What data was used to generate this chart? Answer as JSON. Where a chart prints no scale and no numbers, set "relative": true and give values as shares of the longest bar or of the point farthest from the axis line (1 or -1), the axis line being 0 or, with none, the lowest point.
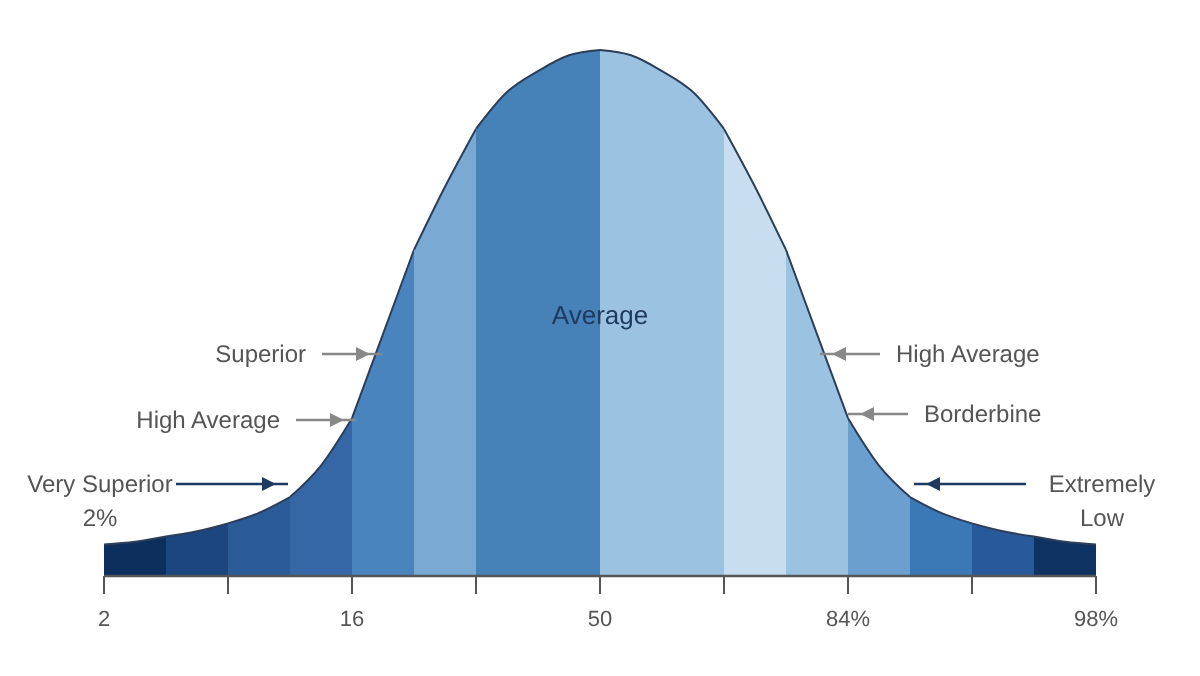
{
  "chart_data": {
    "type": "area",
    "relative": true,
    "categories": [
      "2",
      null,
      null,
      null,
      null,
      null,
      null,
      null,
      "16",
      null,
      null,
      null,
      null,
      null,
      null,
      null,
      "50",
      null,
      null,
      null,
      null,
      null,
      null,
      null,
      "84%",
      null,
      null,
      null,
      null,
      null,
      null,
      null,
      "98%"
    ],
    "series": [
      {
        "color": "#0d2f5e",
        "values": [
          0.06,
          0.065,
          0.075,
          null,
          null,
          null,
          null,
          null,
          null,
          null,
          null,
          null,
          null,
          null,
          null,
          null,
          null,
          null,
          null,
          null,
          null,
          null,
          null,
          null,
          null,
          null,
          null,
          null,
          null,
          null,
          null,
          null,
          null
        ]
      },
      {
        "color": "#1c4680",
        "values": [
          null,
          null,
          0.075,
          0.085,
          0.1,
          null,
          null,
          null,
          null,
          null,
          null,
          null,
          null,
          null,
          null,
          null,
          null,
          null,
          null,
          null,
          null,
          null,
          null,
          null,
          null,
          null,
          null,
          null,
          null,
          null,
          null,
          null,
          null
        ]
      },
      {
        "color": "#2b5c98",
        "values": [
          null,
          null,
          null,
          null,
          0.1,
          0.12,
          0.15,
          null,
          null,
          null,
          null,
          null,
          null,
          null,
          null,
          null,
          null,
          null,
          null,
          null,
          null,
          null,
          null,
          null,
          null,
          null,
          null,
          null,
          null,
          null,
          null,
          null,
          null
        ]
      },
      {
        "color": "#3566a6",
        "values": [
          null,
          null,
          null,
          null,
          null,
          null,
          0.15,
          0.21,
          0.3,
          null,
          null,
          null,
          null,
          null,
          null,
          null,
          null,
          null,
          null,
          null,
          null,
          null,
          null,
          null,
          null,
          null,
          null,
          null,
          null,
          null,
          null,
          null,
          null
        ]
      },
      {
        "color": "#4a84bf",
        "values": [
          null,
          null,
          null,
          null,
          null,
          null,
          null,
          null,
          0.3,
          0.46,
          0.62,
          null,
          null,
          null,
          null,
          null,
          null,
          null,
          null,
          null,
          null,
          null,
          null,
          null,
          null,
          null,
          null,
          null,
          null,
          null,
          null,
          null,
          null
        ]
      },
      {
        "color": "#7aaad4",
        "values": [
          null,
          null,
          null,
          null,
          null,
          null,
          null,
          null,
          null,
          null,
          0.62,
          0.74,
          0.85,
          null,
          null,
          null,
          null,
          null,
          null,
          null,
          null,
          null,
          null,
          null,
          null,
          null,
          null,
          null,
          null,
          null,
          null,
          null,
          null
        ]
      },
      {
        "color": "#4682b8",
        "values": [
          null,
          null,
          null,
          null,
          null,
          null,
          null,
          null,
          null,
          null,
          null,
          null,
          0.85,
          0.92,
          0.96,
          0.99,
          1,
          null,
          null,
          null,
          null,
          null,
          null,
          null,
          null,
          null,
          null,
          null,
          null,
          null,
          null,
          null,
          null
        ]
      },
      {
        "color": "#9cc2e2",
        "values": [
          null,
          null,
          null,
          null,
          null,
          null,
          null,
          null,
          null,
          null,
          null,
          null,
          null,
          null,
          null,
          null,
          1,
          0.99,
          0.96,
          0.92,
          0.85,
          null,
          null,
          null,
          null,
          null,
          null,
          null,
          null,
          null,
          null,
          null,
          null
        ]
      },
      {
        "color": "#c8def0",
        "values": [
          null,
          null,
          null,
          null,
          null,
          null,
          null,
          null,
          null,
          null,
          null,
          null,
          null,
          null,
          null,
          null,
          null,
          null,
          null,
          null,
          0.85,
          0.74,
          0.62,
          null,
          null,
          null,
          null,
          null,
          null,
          null,
          null,
          null,
          null
        ]
      },
      {
        "color": "#9cc2e1",
        "values": [
          null,
          null,
          null,
          null,
          null,
          null,
          null,
          null,
          null,
          null,
          null,
          null,
          null,
          null,
          null,
          null,
          null,
          null,
          null,
          null,
          null,
          null,
          0.62,
          0.46,
          0.3,
          null,
          null,
          null,
          null,
          null,
          null,
          null,
          null
        ]
      },
      {
        "color": "#6a9fcf",
        "values": [
          null,
          null,
          null,
          null,
          null,
          null,
          null,
          null,
          null,
          null,
          null,
          null,
          null,
          null,
          null,
          null,
          null,
          null,
          null,
          null,
          null,
          null,
          null,
          null,
          0.3,
          0.21,
          0.15,
          null,
          null,
          null,
          null,
          null,
          null
        ]
      },
      {
        "color": "#3a78b6",
        "values": [
          null,
          null,
          null,
          null,
          null,
          null,
          null,
          null,
          null,
          null,
          null,
          null,
          null,
          null,
          null,
          null,
          null,
          null,
          null,
          null,
          null,
          null,
          null,
          null,
          null,
          null,
          0.15,
          0.12,
          0.1,
          null,
          null,
          null,
          null
        ]
      },
      {
        "color": "#28599a",
        "values": [
          null,
          null,
          null,
          null,
          null,
          null,
          null,
          null,
          null,
          null,
          null,
          null,
          null,
          null,
          null,
          null,
          null,
          null,
          null,
          null,
          null,
          null,
          null,
          null,
          null,
          null,
          null,
          null,
          0.1,
          0.085,
          0.075,
          null,
          null
        ]
      },
      {
        "color": "#0e3262",
        "values": [
          null,
          null,
          null,
          null,
          null,
          null,
          null,
          null,
          null,
          null,
          null,
          null,
          null,
          null,
          null,
          null,
          null,
          null,
          null,
          null,
          null,
          null,
          null,
          null,
          null,
          null,
          null,
          null,
          null,
          null,
          0.075,
          0.065,
          0.06
        ]
      }
    ],
    "annotations": [
      "Average",
      "Superior",
      "High Average",
      "Very Superior\n2%",
      "High Average",
      "Borderbine",
      "Extremely\nLow"
    ]
  }
}
